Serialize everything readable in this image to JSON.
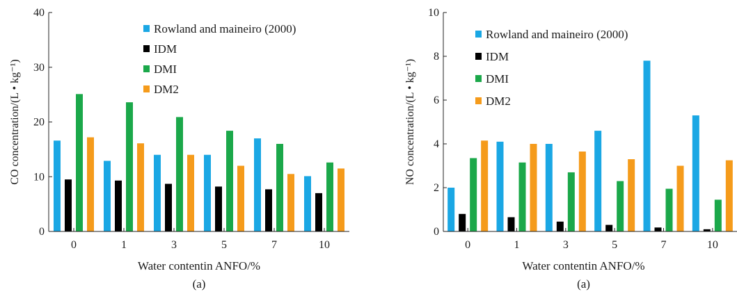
{
  "chart_data": [
    {
      "type": "bar",
      "panel_label": "(a)",
      "xlabel": "Water contentin ANFO/%",
      "ylabel": "CO concentration/(L • kg⁻¹)",
      "categories": [
        "0",
        "1",
        "3",
        "5",
        "7",
        "10"
      ],
      "ylim": [
        0,
        40
      ],
      "yticks": [
        0,
        10,
        20,
        30,
        40
      ],
      "legend_position": "top-right",
      "grid": false,
      "series": [
        {
          "name": "Rowland and maineiro (2000)",
          "color": "#1aa7e4",
          "values": [
            16.6,
            12.9,
            14.0,
            14.0,
            17.0,
            10.1
          ]
        },
        {
          "name": "IDM",
          "color": "#000000",
          "values": [
            9.5,
            9.3,
            8.7,
            8.2,
            7.7,
            7.0
          ]
        },
        {
          "name": "DMI",
          "color": "#1ba84a",
          "values": [
            25.1,
            23.6,
            20.9,
            18.4,
            16.0,
            12.6
          ]
        },
        {
          "name": "DM2",
          "color": "#f59b1b",
          "values": [
            17.2,
            16.1,
            14.0,
            12.0,
            10.5,
            11.5
          ]
        }
      ]
    },
    {
      "type": "bar",
      "panel_label": "(a)",
      "xlabel": "Water contentin ANFO/%",
      "ylabel": "NO concentration/(L • kg⁻¹)",
      "categories": [
        "0",
        "1",
        "3",
        "5",
        "7",
        "10"
      ],
      "ylim": [
        0,
        10
      ],
      "yticks": [
        0,
        2,
        4,
        6,
        8,
        10
      ],
      "legend_position": "top-left",
      "grid": false,
      "series": [
        {
          "name": "Rowland and maineiro (2000)",
          "color": "#1aa7e4",
          "values": [
            2.0,
            4.1,
            4.0,
            4.6,
            7.8,
            5.3
          ]
        },
        {
          "name": "IDM",
          "color": "#000000",
          "values": [
            0.8,
            0.65,
            0.45,
            0.3,
            0.18,
            0.1
          ]
        },
        {
          "name": "DMI",
          "color": "#1ba84a",
          "values": [
            3.35,
            3.15,
            2.7,
            2.3,
            1.95,
            1.45
          ]
        },
        {
          "name": "DM2",
          "color": "#f59b1b",
          "values": [
            4.15,
            4.0,
            3.65,
            3.3,
            3.0,
            3.25
          ]
        }
      ]
    }
  ]
}
